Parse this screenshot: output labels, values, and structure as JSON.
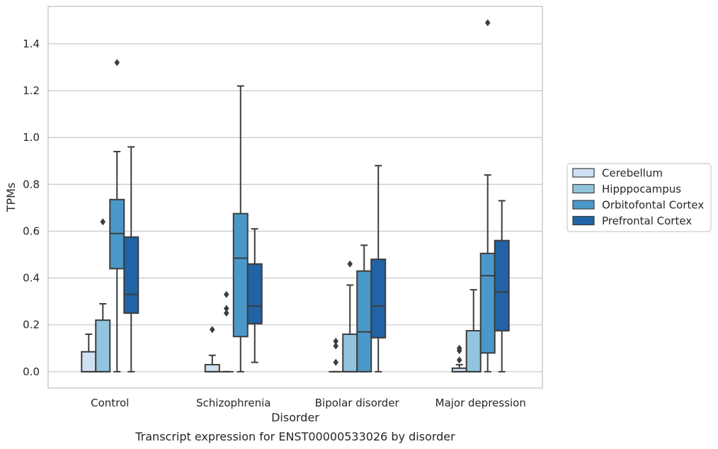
{
  "chart_data": {
    "type": "box",
    "title": "",
    "caption": "Transcript expression for ENST00000533026 by disorder",
    "xlabel": "Disorder",
    "ylabel": "TPMs",
    "ylim": [
      -0.07,
      1.56
    ],
    "yticks": [
      "0.0",
      "0.2",
      "0.4",
      "0.6",
      "0.8",
      "1.0",
      "1.2",
      "1.4"
    ],
    "grid": "horizontal",
    "legend_position": "right",
    "categories": [
      "Control",
      "Schizophrenia",
      "Bipolar disorder",
      "Major depression"
    ],
    "series": [
      {
        "name": "Cerebellum",
        "color": "#cfe1f2",
        "boxes": [
          {
            "low": 0.0,
            "q1": 0.0,
            "median": 0.0,
            "q3": 0.085,
            "high": 0.16,
            "outliers": []
          },
          {
            "low": 0.0,
            "q1": 0.0,
            "median": 0.0,
            "q3": 0.03,
            "high": 0.07,
            "outliers": [
              0.18
            ]
          },
          {
            "low": 0.0,
            "q1": 0.0,
            "median": 0.0,
            "q3": 0.0,
            "high": 0.0,
            "outliers": [
              0.04,
              0.11,
              0.13
            ]
          },
          {
            "low": 0.0,
            "q1": 0.0,
            "median": 0.0,
            "q3": 0.015,
            "high": 0.03,
            "outliers": [
              0.05,
              0.09,
              0.1
            ]
          }
        ]
      },
      {
        "name": "Hipppocampus",
        "color": "#93c4de",
        "boxes": [
          {
            "low": 0.0,
            "q1": 0.0,
            "median": 0.0,
            "q3": 0.22,
            "high": 0.29,
            "outliers": [
              0.64
            ]
          },
          {
            "low": 0.0,
            "q1": 0.0,
            "median": 0.0,
            "q3": 0.0,
            "high": 0.0,
            "outliers": [
              0.25,
              0.27,
              0.33
            ]
          },
          {
            "low": 0.0,
            "q1": 0.0,
            "median": 0.0,
            "q3": 0.16,
            "high": 0.37,
            "outliers": [
              0.46
            ]
          },
          {
            "low": 0.0,
            "q1": 0.0,
            "median": 0.0,
            "q3": 0.175,
            "high": 0.35,
            "outliers": []
          }
        ]
      },
      {
        "name": "Orbitofontal Cortex",
        "color": "#4a98c9",
        "boxes": [
          {
            "low": 0.0,
            "q1": 0.44,
            "median": 0.59,
            "q3": 0.735,
            "high": 0.94,
            "outliers": [
              1.32
            ]
          },
          {
            "low": 0.0,
            "q1": 0.15,
            "median": 0.485,
            "q3": 0.675,
            "high": 1.22,
            "outliers": []
          },
          {
            "low": 0.0,
            "q1": 0.0,
            "median": 0.17,
            "q3": 0.43,
            "high": 0.54,
            "outliers": []
          },
          {
            "low": 0.0,
            "q1": 0.08,
            "median": 0.41,
            "q3": 0.505,
            "high": 0.84,
            "outliers": [
              1.49
            ]
          }
        ]
      },
      {
        "name": "Prefrontal Cortex",
        "color": "#2163a6",
        "boxes": [
          {
            "low": 0.0,
            "q1": 0.25,
            "median": 0.33,
            "q3": 0.575,
            "high": 0.96,
            "outliers": []
          },
          {
            "low": 0.04,
            "q1": 0.205,
            "median": 0.28,
            "q3": 0.46,
            "high": 0.61,
            "outliers": []
          },
          {
            "low": 0.0,
            "q1": 0.145,
            "median": 0.28,
            "q3": 0.48,
            "high": 0.88,
            "outliers": []
          },
          {
            "low": 0.0,
            "q1": 0.175,
            "median": 0.34,
            "q3": 0.56,
            "high": 0.73,
            "outliers": []
          }
        ]
      }
    ]
  }
}
